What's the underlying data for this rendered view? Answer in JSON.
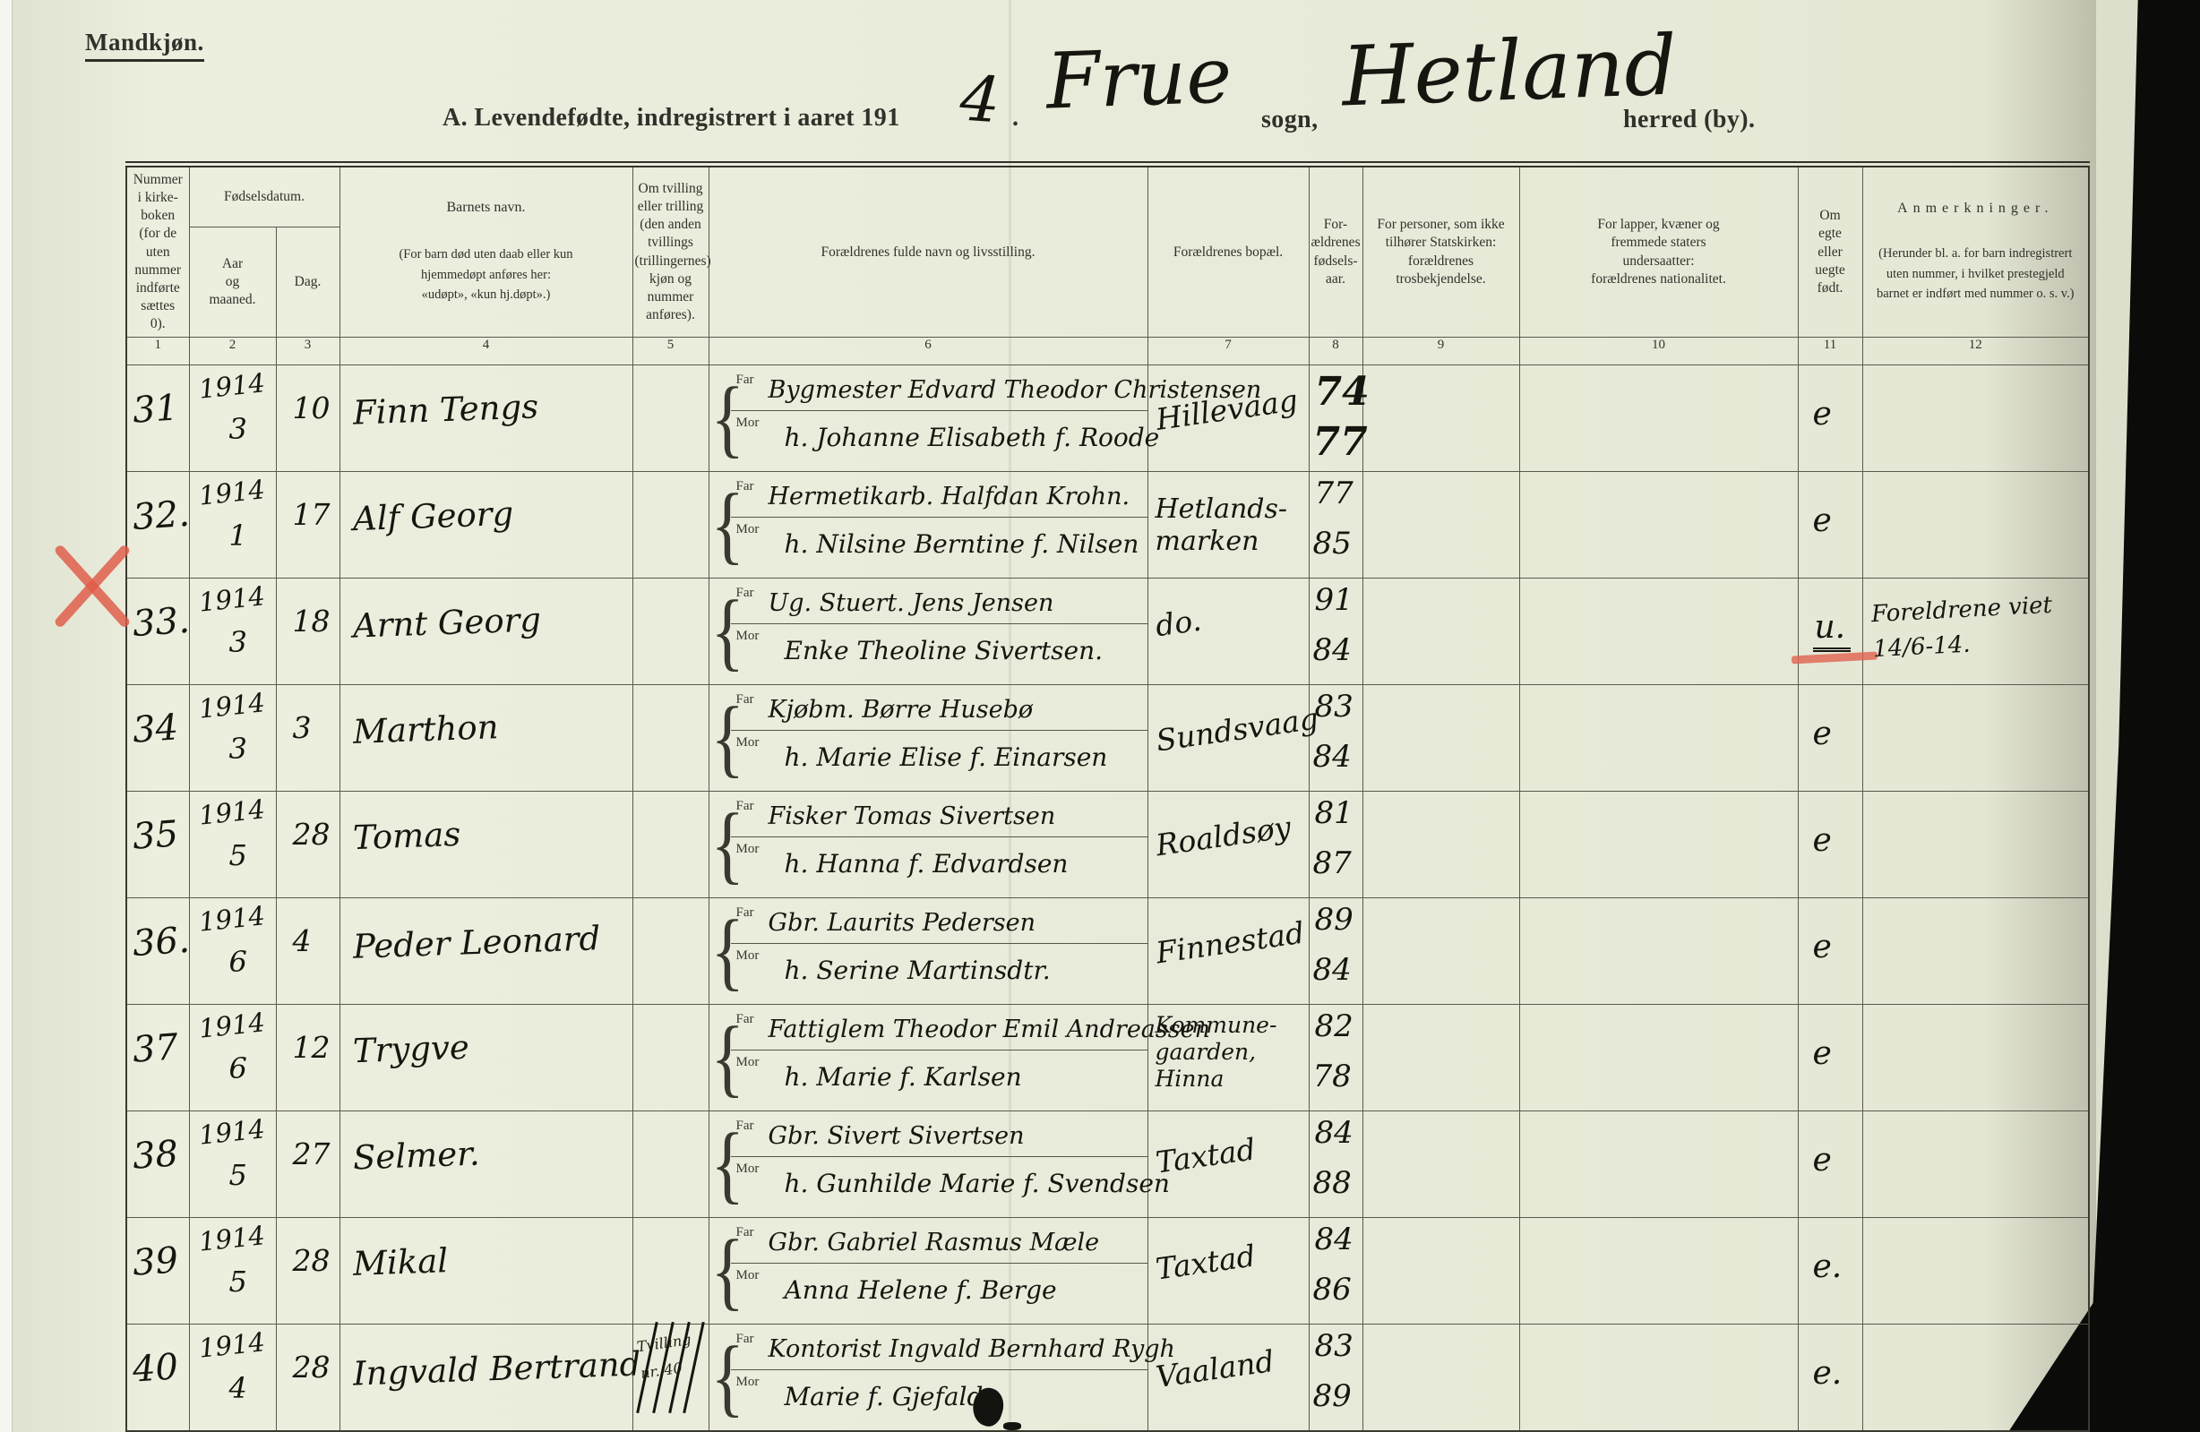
{
  "page_label": "Mandkjøn.",
  "title": {
    "printed_prefix": "A.  Levendefødte, indregistrert i aaret 191",
    "handwritten_year_digit": "4",
    "printed_period": ".",
    "handwritten_parish": "Frue",
    "printed_sogn": "sogn,",
    "handwritten_district": "Hetland",
    "printed_herred": "herred (by)."
  },
  "table": {
    "headers": {
      "col1": "Nummer\ni kirke-\nboken\n(for de\nuten\nnummer\nindførte\nsættes\n0).",
      "birthdate_group": "Fødselsdatum.",
      "col2": "Aar\nog\nmaaned.",
      "col3": "Dag.",
      "col4_title": "Barnets navn.",
      "col4_sub": "(For barn død uten daab eller kun\nhjemmedøpt anføres her:\n«udøpt», «kun hj.døpt».)",
      "col5": "Om tvilling\neller trilling\n(den anden\ntvillings\n(trillingernes)\nkjøn og\nnummer\nanføres).",
      "col6": "Forældrenes fulde navn og livsstilling.",
      "col7": "Forældrenes bopæl.",
      "col8": "For-\nældrenes\nfødsels-\naar.",
      "col9": "For personer, som ikke\ntilhører Statskirken:\nforældrenes trosbekjendelse.",
      "col10": "For lapper, kvæner og\nfremmede staters\nundersaatter:\nforældrenes nationalitet.",
      "col11": "Om\negte\neller\nuegte\nfødt.",
      "col12_title": "Anmerkninger.",
      "col12_sub": "(Herunder bl. a. for barn indregistrert\nuten nummer, i hvilket prestegjeld\nbarnet er indført med nummer o. s. v.)"
    },
    "column_numbers": [
      "1",
      "2",
      "3",
      "4",
      "5",
      "6",
      "7",
      "8",
      "9",
      "10",
      "11",
      "12"
    ],
    "row_labels": {
      "father": "Far",
      "mother": "Mor"
    },
    "rows": [
      {
        "number": "31",
        "year": "1914",
        "month": "3",
        "day": "10",
        "name": "Finn Tengs",
        "father": "Bygmester Edvard Theodor Christensen",
        "mother": "h. Johanne Elisabeth f. Roode",
        "residence": [
          "Hillevaag"
        ],
        "father_year": "74",
        "mother_year": "77",
        "years_bold": true,
        "legitimacy": "e",
        "remark": []
      },
      {
        "number": "32.",
        "year": "1914",
        "month": "1",
        "day": "17",
        "name": "Alf Georg",
        "father": "Hermetikarb. Halfdan Krohn.",
        "mother": "h. Nilsine Berntine f. Nilsen",
        "residence": [
          "Hetlands-",
          "marken"
        ],
        "father_year": "77",
        "mother_year": "85",
        "legitimacy": "e",
        "remark": []
      },
      {
        "number": "33.",
        "crossed_out_red": true,
        "year": "1914",
        "month": "3",
        "day": "18",
        "name": "Arnt Georg",
        "father": "Ug. Stuert. Jens Jensen",
        "mother": "Enke Theoline Sivertsen.",
        "residence": [
          "do."
        ],
        "father_year": "91",
        "mother_year": "84",
        "legitimacy": "u.",
        "legitimacy_underlined": true,
        "remark": [
          "Foreldrene viet",
          "14/6-14."
        ]
      },
      {
        "number": "34",
        "year": "1914",
        "month": "3",
        "day": "3",
        "name": "Marthon",
        "father": "Kjøbm. Børre Husebø",
        "mother": "h. Marie Elise f. Einarsen",
        "residence": [
          "Sundsvaag"
        ],
        "father_year": "83",
        "mother_year": "84",
        "legitimacy": "e",
        "remark": []
      },
      {
        "number": "35",
        "year": "1914",
        "month": "5",
        "day": "28",
        "name": "Tomas",
        "father": "Fisker Tomas Sivertsen",
        "mother": "h. Hanna f. Edvardsen",
        "residence": [
          "Roaldsøy"
        ],
        "father_year": "81",
        "mother_year": "87",
        "legitimacy": "e",
        "remark": []
      },
      {
        "number": "36.",
        "year": "1914",
        "month": "6",
        "day": "4",
        "name": "Peder Leonard",
        "father": "Gbr. Laurits Pedersen",
        "mother": "h. Serine Martinsdtr.",
        "residence": [
          "Finnestad"
        ],
        "father_year": "89",
        "mother_year": "84",
        "legitimacy": "e",
        "remark": []
      },
      {
        "number": "37",
        "year": "1914",
        "month": "6",
        "day": "12",
        "name": "Trygve",
        "father": "Fattiglem Theodor Emil Andreassen",
        "mother": "h. Marie f. Karlsen",
        "residence": [
          "Kommune-",
          "gaarden,",
          "Hinna"
        ],
        "father_year": "82",
        "mother_year": "78",
        "legitimacy": "e",
        "remark": []
      },
      {
        "number": "38",
        "year": "1914",
        "month": "5",
        "day": "27",
        "name": "Selmer.",
        "father": "Gbr. Sivert Sivertsen",
        "mother": "h. Gunhilde Marie f. Svendsen",
        "residence": [
          "Taxtad"
        ],
        "father_year": "84",
        "mother_year": "88",
        "legitimacy": "e",
        "remark": []
      },
      {
        "number": "39",
        "year": "1914",
        "month": "5",
        "day": "28",
        "name": "Mikal",
        "father": "Gbr. Gabriel Rasmus Mæle",
        "mother": "Anna Helene f. Berge",
        "residence": [
          "Taxtad"
        ],
        "father_year": "84",
        "mother_year": "86",
        "legitimacy": "e.",
        "remark": []
      },
      {
        "number": "40",
        "year": "1914",
        "month": "4",
        "day": "28",
        "name": "Ingvald Bertrand",
        "twin_note_struck": [
          "Tvilling",
          "nr. 40"
        ],
        "father": "Kontorist Ingvald Bernhard Rygh",
        "mother": "Marie f. Gjefald.",
        "residence": [
          "Vaaland"
        ],
        "father_year": "83",
        "mother_year": "89",
        "legitimacy": "e.",
        "remark": []
      }
    ]
  }
}
